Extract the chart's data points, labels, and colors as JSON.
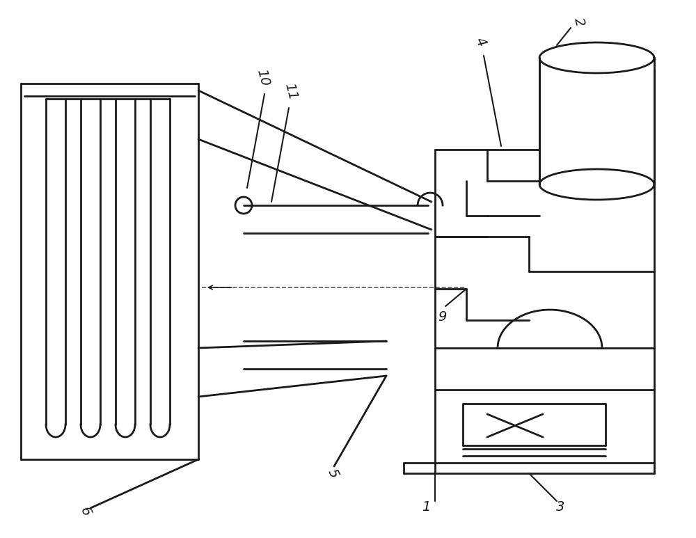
{
  "bg_color": "#ffffff",
  "line_color": "#1a1a1a",
  "lw": 2.0,
  "fig_width": 10.0,
  "fig_height": 7.73,
  "lw_thin": 1.5
}
